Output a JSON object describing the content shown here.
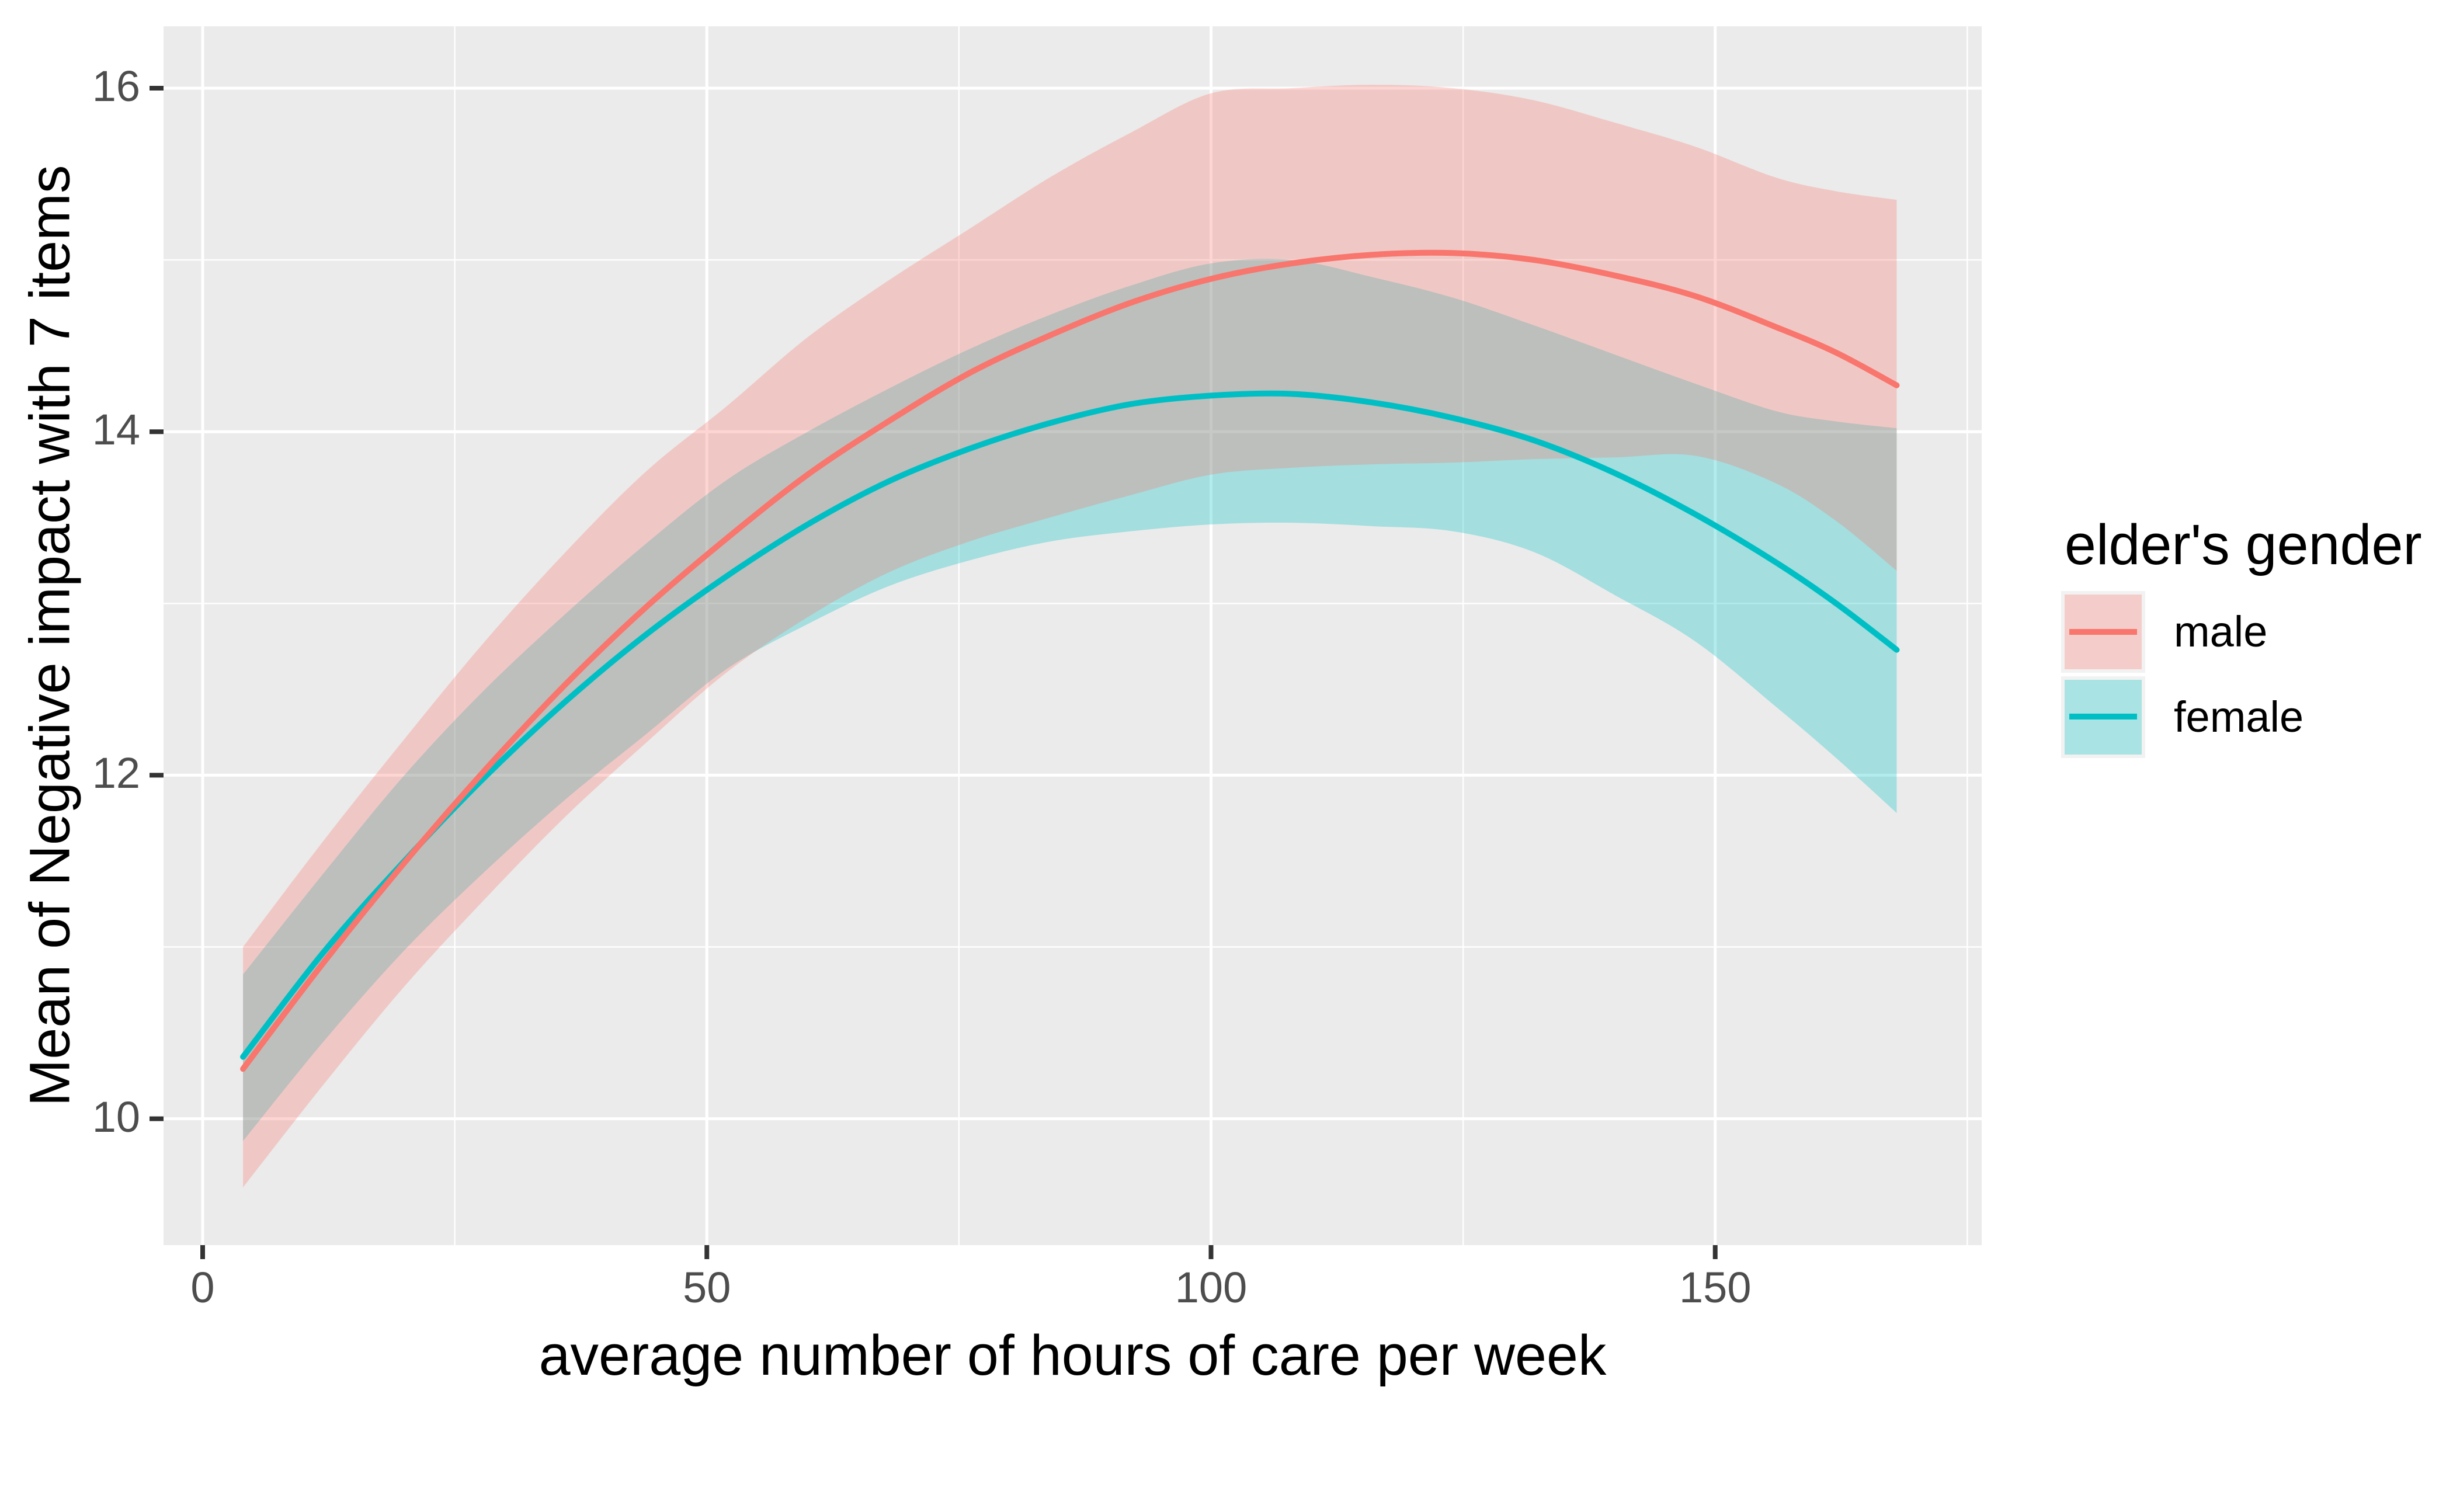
{
  "chart_data": {
    "type": "line",
    "title": "",
    "xlabel": "average number of hours of care per week",
    "ylabel": "Mean of Negative impact with 7 items",
    "x_axis": {
      "ticks": [
        "0",
        "50",
        "100",
        "150"
      ],
      "tick_values": [
        0,
        50,
        100,
        150
      ],
      "minor": [
        25,
        75,
        125,
        175
      ],
      "range": [
        -3.9,
        176.4
      ]
    },
    "y_axis": {
      "ticks": [
        "10",
        "12",
        "14",
        "16"
      ],
      "tick_values": [
        10,
        12,
        14,
        16
      ],
      "minor": [
        11,
        13,
        15
      ],
      "range": [
        9.27,
        16.36
      ]
    },
    "grid": true,
    "legend": {
      "title": "elder's gender",
      "position": "right",
      "entries": [
        {
          "label": "male",
          "color": "#F8766D"
        },
        {
          "label": "female",
          "color": "#00BFC4"
        }
      ]
    },
    "ribbon_alpha": 0.3,
    "x": [
      4,
      12,
      20,
      28,
      36,
      44,
      52,
      60,
      68,
      76,
      84,
      92,
      100,
      108,
      116,
      124,
      132,
      140,
      148,
      156,
      162,
      168
    ],
    "series": [
      {
        "name": "male",
        "color": "#F8766D",
        "mean": [
          10.29,
          10.91,
          11.49,
          12.03,
          12.53,
          12.98,
          13.38,
          13.75,
          14.06,
          14.34,
          14.56,
          14.75,
          14.89,
          14.98,
          15.03,
          15.04,
          15.0,
          14.91,
          14.79,
          14.61,
          14.46,
          14.27
        ],
        "upper": [
          11.0,
          11.62,
          12.21,
          12.78,
          13.3,
          13.77,
          14.15,
          14.55,
          14.88,
          15.18,
          15.48,
          15.74,
          15.97,
          16.0,
          16.02,
          16.0,
          15.93,
          15.8,
          15.66,
          15.48,
          15.4,
          15.35
        ],
        "lower": [
          9.6,
          10.2,
          10.77,
          11.28,
          11.76,
          12.19,
          12.6,
          12.92,
          13.18,
          13.36,
          13.5,
          13.63,
          13.75,
          13.79,
          13.81,
          13.82,
          13.84,
          13.85,
          13.86,
          13.7,
          13.48,
          13.19
        ]
      },
      {
        "name": "female",
        "color": "#00BFC4",
        "mean": [
          10.36,
          10.97,
          11.5,
          11.99,
          12.43,
          12.82,
          13.16,
          13.46,
          13.71,
          13.9,
          14.05,
          14.16,
          14.21,
          14.22,
          14.17,
          14.08,
          13.95,
          13.76,
          13.52,
          13.24,
          13.0,
          12.73
        ],
        "upper": [
          10.84,
          11.43,
          12.0,
          12.5,
          12.94,
          13.35,
          13.72,
          14.0,
          14.25,
          14.48,
          14.68,
          14.85,
          14.98,
          15.0,
          14.9,
          14.78,
          14.62,
          14.45,
          14.28,
          14.12,
          14.06,
          14.02
        ],
        "lower": [
          9.87,
          10.45,
          10.98,
          11.44,
          11.86,
          12.24,
          12.62,
          12.88,
          13.1,
          13.25,
          13.36,
          13.42,
          13.46,
          13.47,
          13.45,
          13.42,
          13.3,
          13.05,
          12.78,
          12.4,
          12.1,
          11.78
        ]
      }
    ]
  },
  "style": {
    "page_bg": "#FFFFFF",
    "panel_bg": "#EBEBEB",
    "grid_color": "#FFFFFF",
    "tick_mark_color": "#333333",
    "tick_label_color": "#4D4D4D",
    "title_color": "#000000",
    "legend_key_bg": "#F2F2F2",
    "ribbon_overlap_color": "#BEBFBD"
  }
}
